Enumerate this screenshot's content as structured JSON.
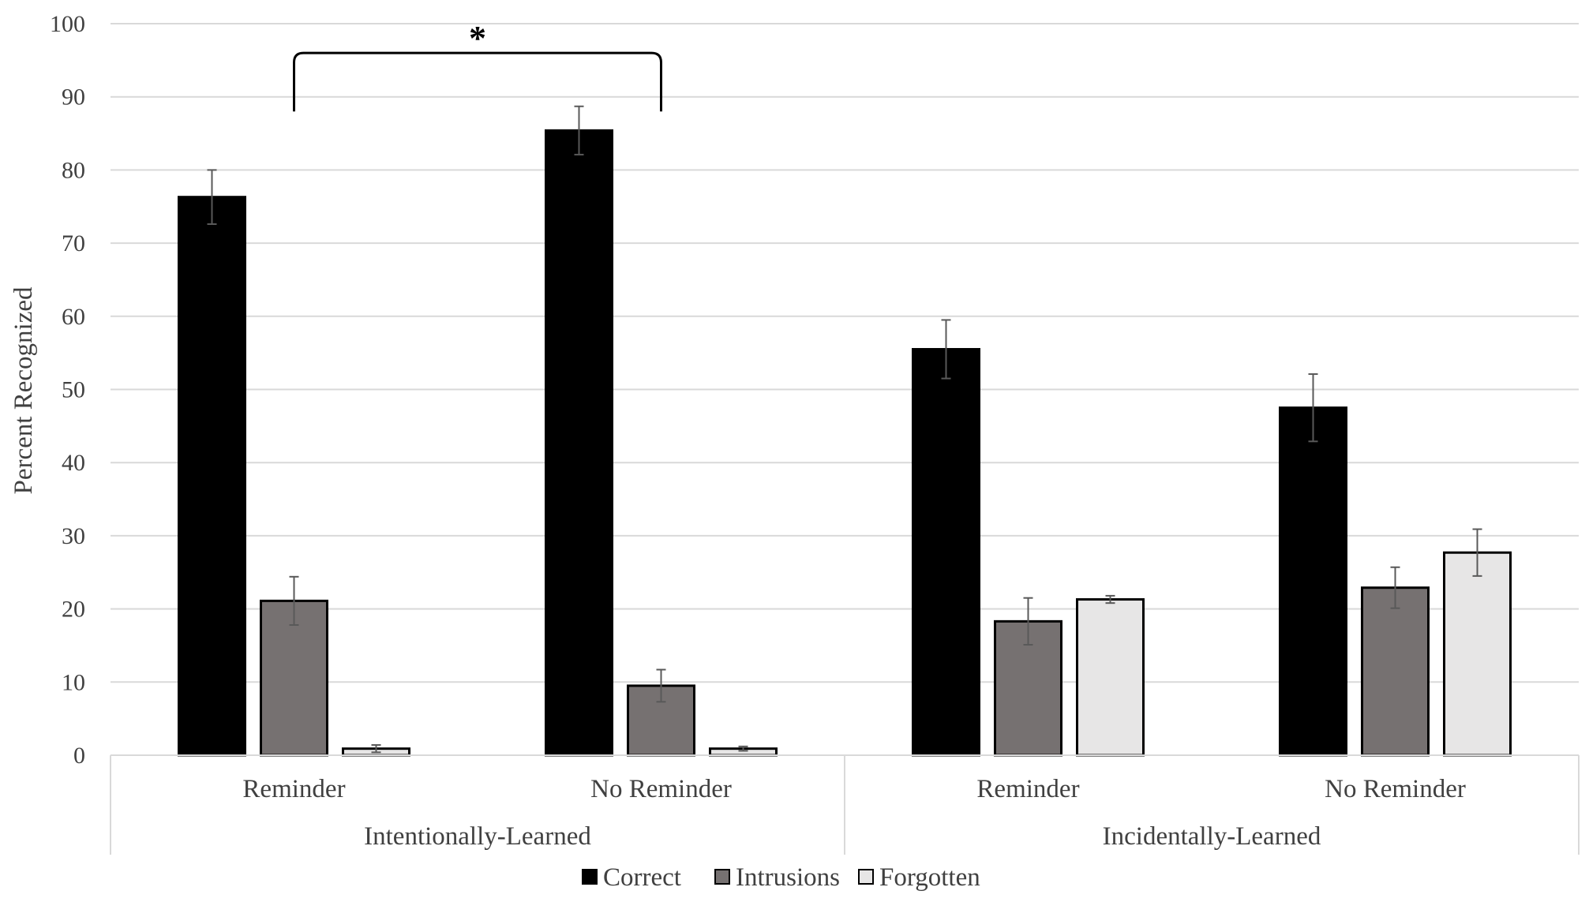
{
  "chart_data": {
    "type": "bar",
    "title": "",
    "ylabel": "Percent Recognized",
    "xlabel": "",
    "ylim": [
      0,
      100
    ],
    "yticks": [
      0,
      10,
      20,
      30,
      40,
      50,
      60,
      70,
      80,
      90,
      100
    ],
    "grid": true,
    "legend_position": "bottom",
    "groups": [
      {
        "label": "Intentionally-Learned",
        "categories": [
          "Reminder",
          "No Reminder"
        ]
      },
      {
        "label": "Incidentally-Learned",
        "categories": [
          "Reminder",
          "No Reminder"
        ]
      }
    ],
    "series": [
      {
        "name": "Correct",
        "color": "#000000",
        "values": [
          76.3,
          85.4,
          55.5,
          47.5
        ],
        "errors": [
          3.7,
          3.3,
          4.0,
          4.6
        ]
      },
      {
        "name": "Intrusions",
        "color": "#767171",
        "values": [
          21.1,
          9.5,
          18.3,
          22.9
        ],
        "errors": [
          3.3,
          2.2,
          3.2,
          2.8
        ]
      },
      {
        "name": "Forgotten",
        "color": "#e7e6e6",
        "values": [
          0.9,
          0.9,
          21.3,
          27.7
        ],
        "errors": [
          0.5,
          0.3,
          0.5,
          3.2
        ]
      }
    ],
    "annotations": [
      {
        "text": "*",
        "type": "significance-bracket",
        "from": 0,
        "to": 1,
        "y": 96
      }
    ]
  }
}
